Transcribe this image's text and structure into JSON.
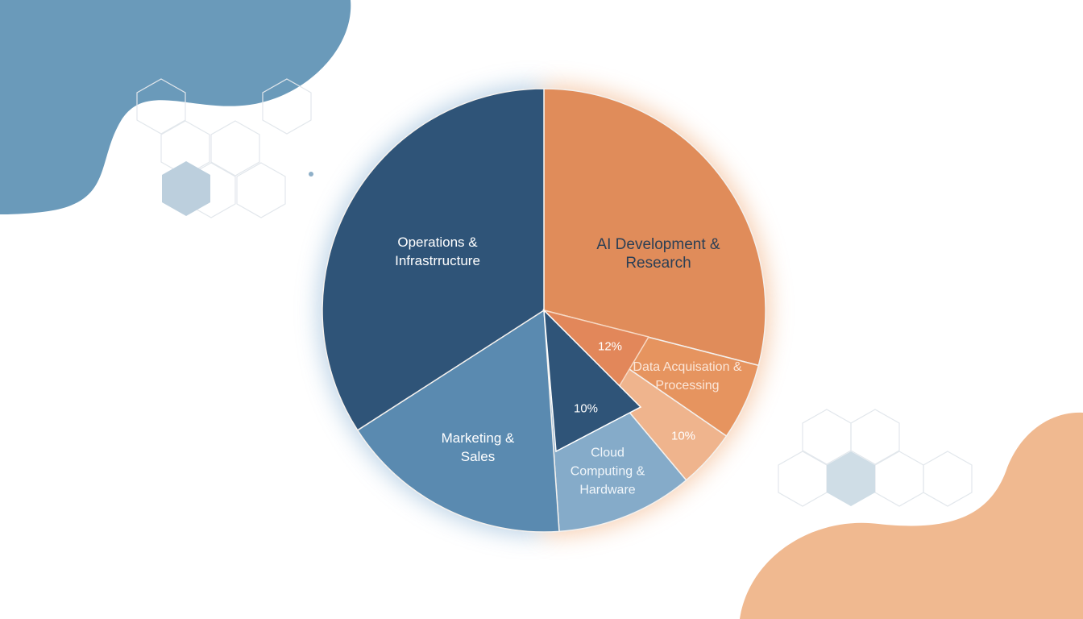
{
  "chart_data": {
    "type": "pie",
    "categories": [
      "AI Development & Research",
      "Data Acquisation & Processing",
      null,
      "Cloud Computing & Hardware",
      "Marketing & Sales",
      "Operations & Infrastrructure"
    ],
    "values": [
      29,
      5.6,
      4.3,
      10,
      17,
      34.1
    ],
    "colors": [
      "#e08c5a",
      "#e6945f",
      "#efb48d",
      "#85abc9",
      "#5a8ab0",
      "#2f5478"
    ],
    "annotations": [
      "12%",
      "10%",
      "10%"
    ]
  }
}
